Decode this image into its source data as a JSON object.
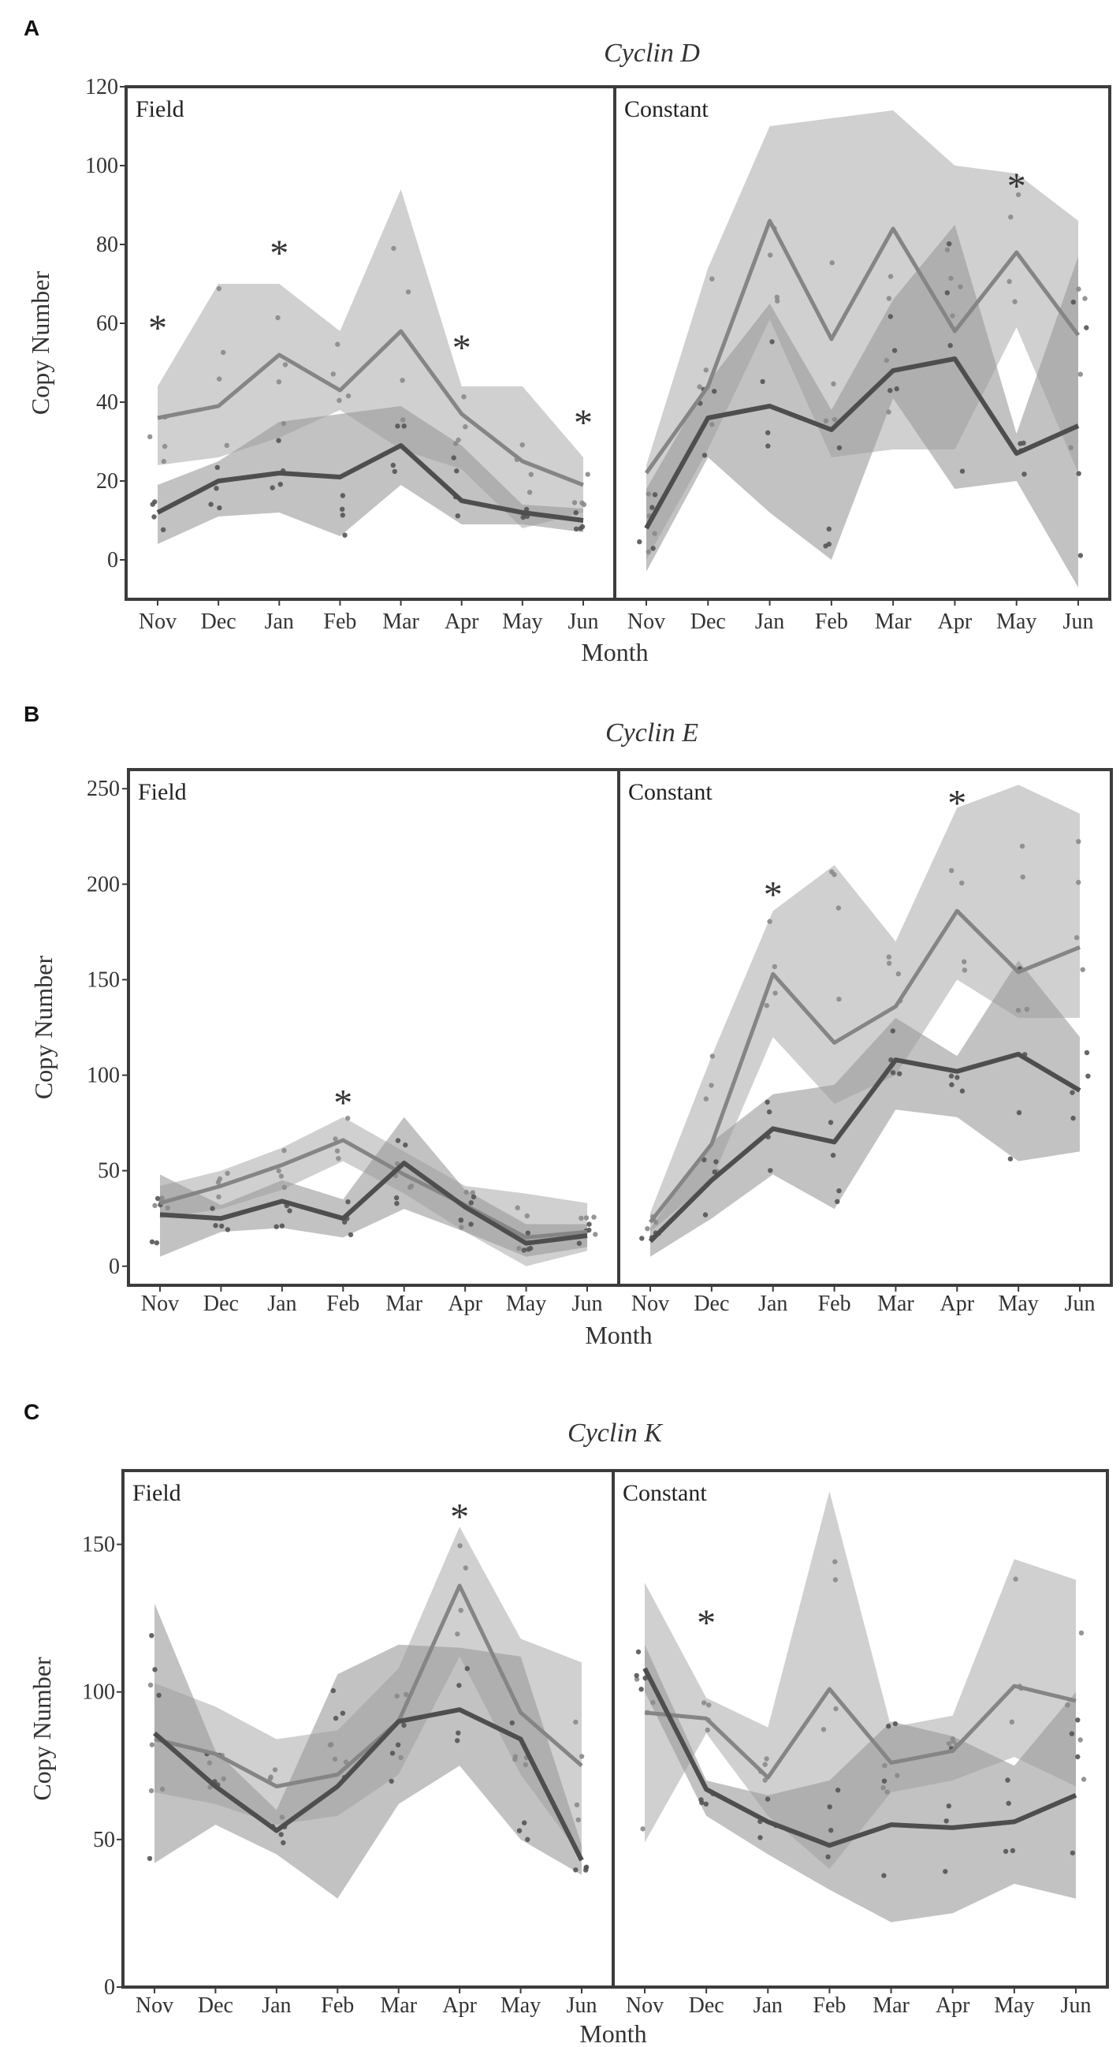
{
  "chart_data": [
    {
      "type": "line",
      "panel_label": "A",
      "title": "Cyclin D",
      "xlabel": "Month",
      "ylabel": "Copy Number",
      "ylim": [
        -10,
        120
      ],
      "yticks": [
        0,
        20,
        40,
        60,
        80,
        100,
        120
      ],
      "categories": [
        "Nov",
        "Dec",
        "Jan",
        "Feb",
        "Mar",
        "Apr",
        "May",
        "Jun"
      ],
      "facets": [
        {
          "name": "Field",
          "series": [
            {
              "name": "light",
              "values": [
                36,
                39,
                52,
                43,
                58,
                37,
                25,
                19
              ],
              "band_low": [
                24,
                26,
                31,
                38,
                28,
                23,
                8,
                12
              ],
              "band_high": [
                44,
                70,
                70,
                58,
                94,
                44,
                44,
                26
              ]
            },
            {
              "name": "dark",
              "values": [
                12,
                20,
                22,
                21,
                29,
                15,
                12,
                10
              ],
              "band_low": [
                4,
                11,
                12,
                6,
                19,
                9,
                9,
                7
              ],
              "band_high": [
                19,
                25,
                35,
                37,
                39,
                29,
                14,
                13
              ]
            }
          ],
          "annotations": [
            {
              "category": "Nov",
              "y": 60,
              "label": "*"
            },
            {
              "category": "Jan",
              "y": 79,
              "label": "*"
            },
            {
              "category": "Apr",
              "y": 55,
              "label": "*"
            },
            {
              "category": "Jun",
              "y": 36,
              "label": "*"
            }
          ]
        },
        {
          "name": "Constant",
          "series": [
            {
              "name": "light",
              "values": [
                22,
                44,
                86,
                56,
                84,
                58,
                78,
                57
              ],
              "band_low": [
                0,
                28,
                61,
                26,
                28,
                28,
                59,
                22
              ],
              "band_high": [
                24,
                74,
                110,
                112,
                114,
                100,
                98,
                86
              ]
            },
            {
              "name": "dark",
              "values": [
                8,
                36,
                39,
                33,
                48,
                51,
                27,
                34
              ],
              "band_low": [
                -3,
                26,
                12,
                0,
                41,
                18,
                20,
                -7
              ],
              "band_high": [
                18,
                45,
                65,
                38,
                66,
                85,
                32,
                77
              ]
            }
          ],
          "annotations": [
            {
              "category": "May",
              "y": 96,
              "label": "*"
            }
          ]
        }
      ]
    },
    {
      "type": "line",
      "panel_label": "B",
      "title": "Cyclin E",
      "xlabel": "Month",
      "ylabel": "Copy Number",
      "ylim": [
        -10,
        260
      ],
      "yticks": [
        0,
        50,
        100,
        150,
        200,
        250
      ],
      "categories": [
        "Nov",
        "Dec",
        "Jan",
        "Feb",
        "Mar",
        "Apr",
        "May",
        "Jun"
      ],
      "facets": [
        {
          "name": "Field",
          "series": [
            {
              "name": "light",
              "values": [
                33,
                42,
                53,
                66,
                48,
                32,
                15,
                18
              ],
              "band_low": [
                25,
                30,
                40,
                55,
                38,
                18,
                0,
                8
              ],
              "band_high": [
                42,
                50,
                62,
                78,
                60,
                42,
                38,
                33
              ]
            },
            {
              "name": "dark",
              "values": [
                27,
                25,
                34,
                25,
                54,
                31,
                12,
                16
              ],
              "band_low": [
                5,
                18,
                20,
                15,
                30,
                18,
                5,
                10
              ],
              "band_high": [
                48,
                32,
                45,
                35,
                78,
                40,
                22,
                22
              ]
            }
          ],
          "annotations": [
            {
              "category": "Feb",
              "y": 88,
              "label": "*"
            }
          ]
        },
        {
          "name": "Constant",
          "series": [
            {
              "name": "light",
              "values": [
                23,
                64,
                153,
                117,
                136,
                186,
                154,
                167
              ],
              "band_low": [
                18,
                45,
                120,
                85,
                100,
                150,
                130,
                130
              ],
              "band_high": [
                28,
                110,
                186,
                210,
                170,
                240,
                252,
                237
              ]
            },
            {
              "name": "dark",
              "values": [
                13,
                45,
                72,
                65,
                108,
                102,
                111,
                92
              ],
              "band_low": [
                5,
                25,
                48,
                30,
                82,
                78,
                55,
                60
              ],
              "band_high": [
                20,
                65,
                90,
                95,
                130,
                110,
                160,
                120
              ]
            }
          ],
          "annotations": [
            {
              "category": "Jan",
              "y": 197,
              "label": "*"
            },
            {
              "category": "Apr",
              "y": 245,
              "label": "*"
            }
          ]
        }
      ]
    },
    {
      "type": "line",
      "panel_label": "C",
      "title": "Cyclin K",
      "xlabel": "Month",
      "ylabel": "Copy Number",
      "ylim": [
        0,
        175
      ],
      "yticks": [
        0,
        50,
        100,
        150
      ],
      "categories": [
        "Nov",
        "Dec",
        "Jan",
        "Feb",
        "Mar",
        "Apr",
        "May",
        "Jun"
      ],
      "facets": [
        {
          "name": "Field",
          "series": [
            {
              "name": "light",
              "values": [
                84,
                79,
                68,
                72,
                90,
                136,
                93,
                75
              ],
              "band_low": [
                66,
                62,
                55,
                58,
                72,
                112,
                72,
                44
              ],
              "band_high": [
                103,
                95,
                84,
                87,
                108,
                156,
                118,
                110
              ]
            },
            {
              "name": "dark",
              "values": [
                86,
                68,
                53,
                68,
                90,
                94,
                84,
                43
              ],
              "band_low": [
                42,
                55,
                45,
                30,
                62,
                75,
                50,
                38
              ],
              "band_high": [
                130,
                80,
                60,
                106,
                116,
                115,
                112,
                48
              ]
            }
          ],
          "annotations": [
            {
              "category": "Apr",
              "y": 161,
              "label": "*"
            }
          ]
        },
        {
          "name": "Constant",
          "series": [
            {
              "name": "light",
              "values": [
                93,
                91,
                71,
                101,
                76,
                80,
                102,
                97
              ],
              "band_low": [
                49,
                86,
                58,
                40,
                66,
                70,
                78,
                68
              ],
              "band_high": [
                137,
                98,
                88,
                168,
                88,
                92,
                145,
                138
              ]
            },
            {
              "name": "dark",
              "values": [
                108,
                67,
                56,
                48,
                55,
                54,
                56,
                65
              ],
              "band_low": [
                100,
                58,
                45,
                33,
                22,
                25,
                35,
                30
              ],
              "band_high": [
                116,
                70,
                65,
                70,
                90,
                85,
                75,
                100
              ]
            }
          ],
          "annotations": [
            {
              "category": "Dec",
              "y": 125,
              "label": "*"
            }
          ]
        }
      ]
    }
  ],
  "colors": {
    "light_line": "#858585",
    "dark_line": "#4e4e4e",
    "light_band": "#c8c8c8",
    "dark_band": "#999999",
    "points": "#7a7a7a",
    "frame": "#3c3c3c"
  }
}
